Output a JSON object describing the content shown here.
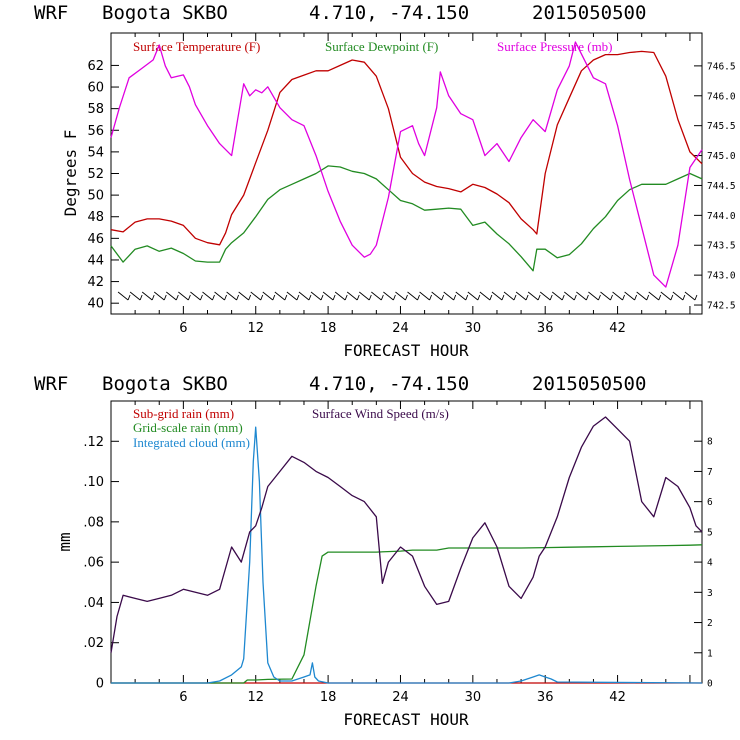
{
  "chart_data": [
    {
      "type": "line",
      "header": {
        "model": "WRF",
        "station": "Bogota SKBO",
        "coords": "4.710, -74.150",
        "run": "2015050500"
      },
      "xlabel": "FORECAST HOUR",
      "ylabel": "Degrees F",
      "xlim": [
        0,
        49
      ],
      "ylim": [
        39,
        65
      ],
      "y2lim": [
        742.35,
        747.05
      ],
      "xticks": [
        "6",
        "12",
        "18",
        "24",
        "30",
        "36",
        "42"
      ],
      "yticks": [
        "40",
        "42",
        "44",
        "46",
        "48",
        "50",
        "52",
        "54",
        "56",
        "58",
        "60",
        "62"
      ],
      "y2ticks": [
        "742.5",
        "743.0",
        "743.5",
        "744.0",
        "744.5",
        "745.0",
        "745.5",
        "746.0",
        "746.5"
      ],
      "wind_barbs_row": true,
      "series": [
        {
          "name": "Surface Temperature (F)",
          "color": "#c00000",
          "axis": "left",
          "x": [
            0,
            1,
            2,
            3,
            4,
            5,
            6,
            7,
            8,
            9,
            9.5,
            10,
            11,
            12,
            13,
            14,
            15,
            16,
            17,
            18,
            19,
            20,
            21,
            22,
            23,
            24,
            25,
            26,
            27,
            28,
            29,
            30,
            31,
            32,
            33,
            34,
            35,
            35.3,
            36,
            37,
            38,
            39,
            40,
            41,
            42,
            43,
            44,
            45,
            46,
            47,
            48,
            49
          ],
          "y": [
            46.8,
            46.6,
            47.5,
            47.8,
            47.8,
            47.6,
            47.2,
            46.0,
            45.6,
            45.4,
            46.5,
            48.2,
            50.0,
            53.0,
            56.0,
            59.5,
            60.7,
            61.1,
            61.5,
            61.5,
            62.0,
            62.5,
            62.3,
            61.0,
            58.0,
            53.5,
            52.0,
            51.2,
            50.8,
            50.6,
            50.3,
            51.0,
            50.7,
            50.1,
            49.3,
            47.8,
            46.8,
            46.4,
            52.0,
            56.5,
            59.0,
            61.5,
            62.5,
            63.0,
            63.0,
            63.2,
            63.3,
            63.2,
            61.0,
            57.0,
            54.0,
            52.9
          ]
        },
        {
          "name": "Surface Dewpoint (F)",
          "color": "#228b22",
          "axis": "left",
          "x": [
            0,
            1,
            2,
            3,
            4,
            5,
            6,
            7,
            8,
            9,
            9.5,
            10,
            11,
            12,
            13,
            14,
            15,
            16,
            17,
            18,
            19,
            20,
            21,
            22,
            23,
            24,
            25,
            26,
            27,
            28,
            29,
            30,
            31,
            32,
            33,
            34,
            35,
            35.3,
            36,
            37,
            38,
            39,
            40,
            41,
            42,
            43,
            44,
            45,
            46,
            47,
            48,
            49
          ],
          "y": [
            45.3,
            43.8,
            45.0,
            45.3,
            44.8,
            45.1,
            44.6,
            43.9,
            43.8,
            43.8,
            45.0,
            45.6,
            46.5,
            48.0,
            49.6,
            50.5,
            51.0,
            51.5,
            52.0,
            52.7,
            52.6,
            52.2,
            52.0,
            51.5,
            50.5,
            49.5,
            49.2,
            48.6,
            48.7,
            48.8,
            48.7,
            47.2,
            47.5,
            46.4,
            45.5,
            44.3,
            43.0,
            45.0,
            45.0,
            44.2,
            44.5,
            45.5,
            46.9,
            48.0,
            49.5,
            50.5,
            51.0,
            51.0,
            51.0,
            51.5,
            52.0,
            51.5
          ]
        },
        {
          "name": "Surface Pressure (mb)",
          "color": "#e000e0",
          "axis": "right",
          "x": [
            0,
            0.7,
            1.5,
            2.5,
            3.5,
            4,
            4.5,
            5,
            6,
            6.5,
            7,
            8,
            9,
            10,
            10.5,
            11,
            11.5,
            12,
            12.5,
            13,
            14,
            15,
            16,
            17,
            18,
            19,
            20,
            21,
            21.5,
            22,
            23,
            24,
            25,
            25.5,
            26,
            27,
            27.3,
            28,
            29,
            30,
            31,
            32,
            33,
            34,
            35,
            35.5,
            36,
            37,
            38,
            38.5,
            39,
            40,
            41,
            42,
            43,
            44,
            45,
            46,
            47,
            48,
            49
          ],
          "y": [
            745.3,
            745.8,
            746.3,
            746.45,
            746.6,
            746.85,
            746.5,
            746.3,
            746.35,
            746.15,
            745.85,
            745.5,
            745.2,
            745.0,
            745.6,
            746.2,
            746.0,
            746.1,
            746.05,
            746.15,
            745.8,
            745.6,
            745.5,
            745.0,
            744.4,
            743.9,
            743.5,
            743.3,
            743.35,
            743.5,
            744.3,
            745.4,
            745.5,
            745.2,
            745.0,
            745.8,
            746.4,
            746.0,
            745.7,
            745.6,
            745.0,
            745.2,
            744.9,
            745.3,
            745.6,
            745.5,
            745.4,
            746.1,
            746.5,
            746.9,
            746.7,
            746.3,
            746.2,
            745.5,
            744.6,
            743.8,
            743.0,
            742.8,
            743.5,
            744.8,
            745.1
          ]
        }
      ]
    },
    {
      "type": "line",
      "header": {
        "model": "WRF",
        "station": "Bogota SKBO",
        "coords": "4.710, -74.150",
        "run": "2015050500"
      },
      "xlabel": "FORECAST HOUR",
      "ylabel": "mm",
      "xlim": [
        0,
        49
      ],
      "ylim": [
        0,
        0.14
      ],
      "y2lim": [
        0,
        9.33
      ],
      "xticks": [
        "6",
        "12",
        "18",
        "24",
        "30",
        "36",
        "42"
      ],
      "yticks": [
        "0",
        ".02",
        ".04",
        ".06",
        ".08",
        ".10",
        ".12"
      ],
      "y2ticks": [
        "0",
        "1",
        "2",
        "3",
        "4",
        "5",
        "6",
        "7",
        "8"
      ],
      "series": [
        {
          "name": "Sub-grid rain (mm)",
          "color": "#c00000",
          "axis": "left",
          "x": [
            0,
            49
          ],
          "y": [
            0,
            0
          ]
        },
        {
          "name": "Grid-scale rain (mm)",
          "color": "#228b22",
          "axis": "left",
          "x": [
            0,
            11,
            11.3,
            12,
            13,
            15,
            16,
            17,
            17.5,
            18,
            19,
            20,
            22,
            24,
            25,
            27,
            28,
            30,
            32,
            34,
            36,
            38,
            40,
            42,
            44,
            46,
            48,
            49
          ],
          "y": [
            0,
            0,
            0.0015,
            0.0015,
            0.0018,
            0.002,
            0.014,
            0.048,
            0.063,
            0.065,
            0.065,
            0.065,
            0.065,
            0.0655,
            0.066,
            0.066,
            0.067,
            0.067,
            0.067,
            0.067,
            0.0672,
            0.0674,
            0.0676,
            0.0678,
            0.068,
            0.0682,
            0.0684,
            0.0686
          ]
        },
        {
          "name": "Integrated cloud (mm)",
          "color": "#1e88d0",
          "axis": "left",
          "x": [
            0,
            8,
            9,
            10,
            10.8,
            11,
            11.5,
            11.8,
            12,
            12.3,
            12.6,
            13,
            13.5,
            14,
            15,
            16,
            16.5,
            16.7,
            16.9,
            17.2,
            18,
            33,
            34,
            35,
            35.5,
            36,
            36.5,
            37,
            49
          ],
          "y": [
            0,
            0,
            0.001,
            0.004,
            0.008,
            0.012,
            0.06,
            0.11,
            0.127,
            0.1,
            0.05,
            0.01,
            0.003,
            0.001,
            0.001,
            0.003,
            0.004,
            0.01,
            0.003,
            0.001,
            0,
            0,
            0.001,
            0.003,
            0.004,
            0.003,
            0.002,
            0.0005,
            0
          ]
        },
        {
          "name": "Surface Wind Speed (m/s)",
          "color": "#3a0a4a",
          "axis": "right",
          "x": [
            0,
            0.5,
            1,
            2,
            3,
            4,
            5,
            6,
            7,
            8,
            9,
            10,
            10.8,
            11.5,
            12,
            12.5,
            13,
            14,
            15,
            16,
            17,
            18,
            19,
            20,
            21,
            22,
            22.5,
            23,
            24,
            25,
            26,
            27,
            28,
            29,
            30,
            31,
            32,
            33,
            34,
            35,
            35.5,
            36,
            37,
            38,
            39,
            40,
            41,
            42,
            43,
            44,
            45,
            46,
            47,
            48,
            48.5,
            49
          ],
          "y": [
            1.0,
            2.2,
            2.9,
            2.8,
            2.7,
            2.8,
            2.9,
            3.1,
            3.0,
            2.9,
            3.1,
            4.5,
            4.0,
            5.0,
            5.2,
            5.8,
            6.5,
            7.0,
            7.5,
            7.3,
            7.0,
            6.8,
            6.5,
            6.2,
            6.0,
            5.5,
            3.3,
            4.0,
            4.5,
            4.2,
            3.2,
            2.6,
            2.7,
            3.8,
            4.8,
            5.3,
            4.5,
            3.2,
            2.8,
            3.5,
            4.2,
            4.5,
            5.5,
            6.8,
            7.8,
            8.5,
            8.8,
            8.4,
            8.0,
            6.0,
            5.5,
            6.8,
            6.5,
            5.8,
            5.2,
            5.0
          ]
        }
      ]
    }
  ]
}
